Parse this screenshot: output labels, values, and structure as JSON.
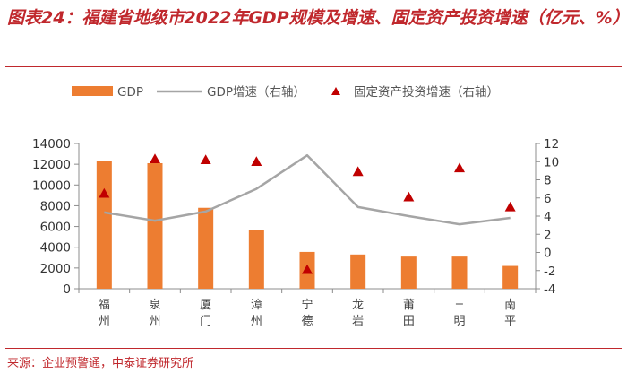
{
  "title": "图表24：福建省地级市2022年GDP规模及增速、固定资产投资增速（亿元、%）",
  "source": "来源：企业预警通，中泰证券研究所",
  "chart_data": {
    "type": "bar",
    "categories": [
      "福州",
      "泉州",
      "厦门",
      "漳州",
      "宁德",
      "龙岩",
      "莆田",
      "三明",
      "南平"
    ],
    "series": [
      {
        "name": "GDP",
        "type": "bar",
        "axis": "left",
        "color": "#ed7d31",
        "values": [
          12300,
          12100,
          7800,
          5700,
          3550,
          3300,
          3100,
          3100,
          2200
        ]
      },
      {
        "name": "GDP增速（右轴）",
        "type": "line",
        "axis": "right",
        "color": "#a5a5a5",
        "values": [
          4.4,
          3.5,
          4.5,
          7.0,
          10.7,
          5.0,
          4.0,
          3.1,
          3.8
        ]
      },
      {
        "name": "固定资产投资增速（右轴）",
        "type": "scatter",
        "axis": "right",
        "color": "#c00000",
        "marker": "triangle",
        "values": [
          6.5,
          10.3,
          10.2,
          10.0,
          -1.9,
          8.9,
          6.1,
          9.3,
          5.0
        ]
      }
    ],
    "y_left": {
      "min": 0,
      "max": 14000,
      "ticks": [
        0,
        2000,
        4000,
        6000,
        8000,
        10000,
        12000,
        14000
      ]
    },
    "y_right": {
      "min": -4,
      "max": 12,
      "ticks": [
        -4,
        -2,
        0,
        2,
        4,
        6,
        8,
        10,
        12
      ]
    },
    "legend_position": "top",
    "grid": false
  }
}
